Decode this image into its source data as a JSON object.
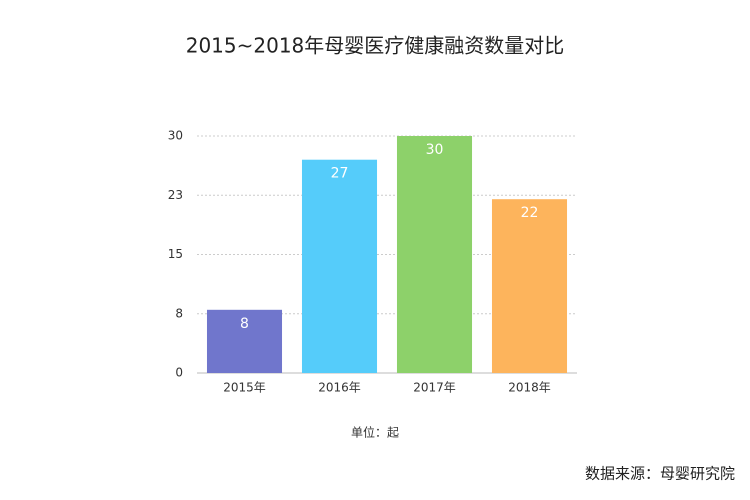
{
  "chart_data": {
    "type": "bar",
    "title": "2015~2018年母婴医疗健康融资数量对比",
    "categories": [
      "2015年",
      "2016年",
      "2017年",
      "2018年"
    ],
    "values": [
      8,
      27,
      30,
      22
    ],
    "colors": [
      "#7076cc",
      "#55ccfa",
      "#8dd16a",
      "#fdb45c"
    ],
    "ylim": [
      0,
      30
    ],
    "yticks": [
      0,
      {
        "value": 7.5,
        "label": "8"
      },
      15,
      {
        "value": 22.5,
        "label": "23"
      },
      30
    ],
    "grid": true,
    "unit_note": "单位：起",
    "source": "数据来源：母婴研究院"
  }
}
